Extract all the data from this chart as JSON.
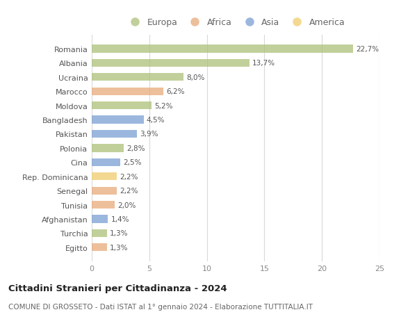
{
  "categories": [
    "Romania",
    "Albania",
    "Ucraina",
    "Marocco",
    "Moldova",
    "Bangladesh",
    "Pakistan",
    "Polonia",
    "Cina",
    "Rep. Dominicana",
    "Senegal",
    "Tunisia",
    "Afghanistan",
    "Turchia",
    "Egitto"
  ],
  "values": [
    22.7,
    13.7,
    8.0,
    6.2,
    5.2,
    4.5,
    3.9,
    2.8,
    2.5,
    2.2,
    2.2,
    2.0,
    1.4,
    1.3,
    1.3
  ],
  "labels": [
    "22,7%",
    "13,7%",
    "8,0%",
    "6,2%",
    "5,2%",
    "4,5%",
    "3,9%",
    "2,8%",
    "2,5%",
    "2,2%",
    "2,2%",
    "2,0%",
    "1,4%",
    "1,3%",
    "1,3%"
  ],
  "colors": [
    "#adc178",
    "#adc178",
    "#adc178",
    "#e8aa7a",
    "#adc178",
    "#7b9fd4",
    "#7b9fd4",
    "#adc178",
    "#7b9fd4",
    "#f0cc6e",
    "#e8aa7a",
    "#e8aa7a",
    "#7b9fd4",
    "#adc178",
    "#e8aa7a"
  ],
  "legend_items": [
    {
      "label": "Europa",
      "color": "#adc178"
    },
    {
      "label": "Africa",
      "color": "#e8aa7a"
    },
    {
      "label": "Asia",
      "color": "#7b9fd4"
    },
    {
      "label": "America",
      "color": "#f0cc6e"
    }
  ],
  "title": "Cittadini Stranieri per Cittadinanza - 2024",
  "subtitle": "COMUNE DI GROSSETO - Dati ISTAT al 1° gennaio 2024 - Elaborazione TUTTITALIA.IT",
  "xlim": [
    0,
    25
  ],
  "xticks": [
    0,
    5,
    10,
    15,
    20,
    25
  ],
  "bg_color": "#ffffff",
  "grid_color": "#d8d8d8",
  "bar_alpha": 0.75
}
